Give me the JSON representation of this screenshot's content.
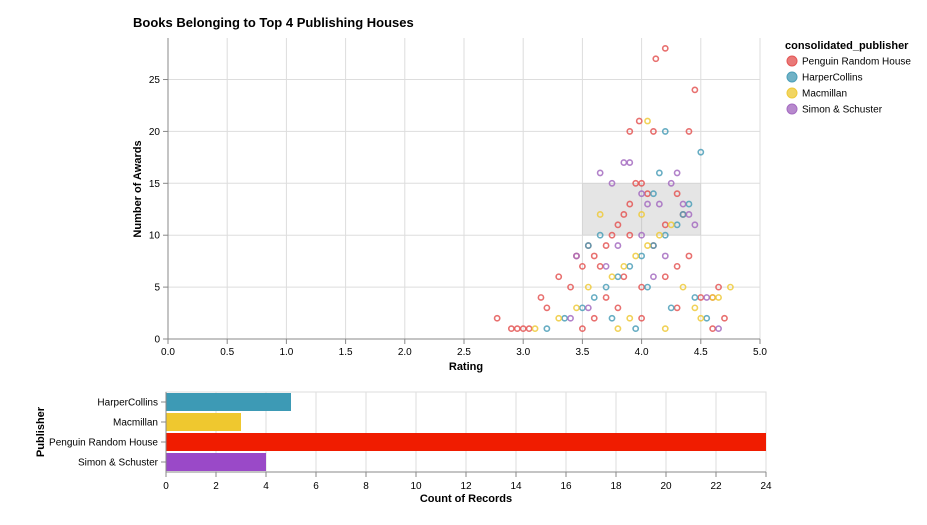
{
  "chart_data": [
    {
      "type": "scatter",
      "title": "Books Belonging to Top 4 Publishing Houses",
      "xlabel": "Rating",
      "ylabel": "Number of Awards",
      "xlim": [
        0,
        5
      ],
      "ylim": [
        0,
        29
      ],
      "x_ticks": [
        "0.0",
        "0.5",
        "1.0",
        "1.5",
        "2.0",
        "2.5",
        "3.0",
        "3.5",
        "4.0",
        "4.5",
        "5.0"
      ],
      "y_ticks": [
        "0",
        "5",
        "10",
        "15",
        "20",
        "25"
      ],
      "grid": true,
      "legend": {
        "title": "consolidated_publisher",
        "position": "right",
        "entries": [
          "Penguin Random House",
          "HarperCollins",
          "Macmillan",
          "Simon & Schuster"
        ]
      },
      "brush_selection": {
        "x": [
          3.5,
          4.5
        ],
        "y": [
          10,
          15
        ]
      },
      "series": [
        {
          "name": "Penguin Random House",
          "color": "#e45756",
          "points": [
            [
              2.78,
              2
            ],
            [
              2.9,
              1
            ],
            [
              2.95,
              1
            ],
            [
              3.0,
              1
            ],
            [
              3.05,
              1
            ],
            [
              3.15,
              4
            ],
            [
              3.2,
              3
            ],
            [
              3.3,
              6
            ],
            [
              3.4,
              5
            ],
            [
              3.45,
              8
            ],
            [
              3.5,
              7
            ],
            [
              3.55,
              9
            ],
            [
              3.6,
              8
            ],
            [
              3.65,
              7
            ],
            [
              3.7,
              9
            ],
            [
              3.75,
              10
            ],
            [
              3.8,
              11
            ],
            [
              3.85,
              12
            ],
            [
              3.9,
              13
            ],
            [
              3.95,
              15
            ],
            [
              4.0,
              15
            ],
            [
              3.98,
              21
            ],
            [
              4.05,
              14
            ],
            [
              4.1,
              20
            ],
            [
              3.9,
              20
            ],
            [
              4.12,
              27
            ],
            [
              4.2,
              28
            ],
            [
              4.3,
              14
            ],
            [
              4.35,
              12
            ],
            [
              4.4,
              20
            ],
            [
              4.45,
              24
            ],
            [
              4.5,
              4
            ],
            [
              4.6,
              4
            ],
            [
              4.65,
              5
            ],
            [
              4.7,
              2
            ],
            [
              3.6,
              2
            ],
            [
              3.8,
              3
            ],
            [
              4.0,
              5
            ],
            [
              4.2,
              6
            ],
            [
              4.3,
              7
            ],
            [
              4.4,
              8
            ],
            [
              4.1,
              9
            ],
            [
              3.9,
              10
            ],
            [
              4.2,
              11
            ],
            [
              3.7,
              4
            ],
            [
              3.5,
              1
            ],
            [
              4.6,
              1
            ],
            [
              4.0,
              2
            ],
            [
              4.3,
              3
            ],
            [
              3.85,
              6
            ]
          ]
        },
        {
          "name": "HarperCollins",
          "color": "#4c9fb8",
          "points": [
            [
              3.2,
              1
            ],
            [
              3.35,
              2
            ],
            [
              3.5,
              3
            ],
            [
              3.6,
              4
            ],
            [
              3.7,
              5
            ],
            [
              3.8,
              6
            ],
            [
              3.9,
              7
            ],
            [
              4.0,
              8
            ],
            [
              4.1,
              9
            ],
            [
              4.2,
              10
            ],
            [
              4.3,
              11
            ],
            [
              4.35,
              12
            ],
            [
              4.4,
              13
            ],
            [
              3.55,
              9
            ],
            [
              3.65,
              10
            ],
            [
              4.15,
              16
            ],
            [
              4.2,
              20
            ],
            [
              4.1,
              14
            ],
            [
              4.5,
              18
            ],
            [
              4.55,
              2
            ],
            [
              3.95,
              1
            ],
            [
              4.45,
              4
            ],
            [
              4.25,
              3
            ],
            [
              3.75,
              2
            ],
            [
              4.05,
              5
            ]
          ]
        },
        {
          "name": "Macmillan",
          "color": "#eeca3b",
          "points": [
            [
              3.1,
              1
            ],
            [
              3.3,
              2
            ],
            [
              3.45,
              3
            ],
            [
              3.55,
              5
            ],
            [
              3.65,
              12
            ],
            [
              3.75,
              6
            ],
            [
              3.85,
              7
            ],
            [
              3.95,
              8
            ],
            [
              4.05,
              9
            ],
            [
              4.15,
              10
            ],
            [
              4.25,
              11
            ],
            [
              4.35,
              5
            ],
            [
              4.45,
              3
            ],
            [
              4.6,
              4
            ],
            [
              4.65,
              4
            ],
            [
              4.75,
              5
            ],
            [
              4.05,
              21
            ],
            [
              4.0,
              12
            ],
            [
              3.9,
              2
            ],
            [
              4.2,
              1
            ],
            [
              4.5,
              2
            ],
            [
              3.8,
              1
            ]
          ]
        },
        {
          "name": "Simon & Schuster",
          "color": "#a56cc1",
          "points": [
            [
              3.4,
              2
            ],
            [
              3.45,
              8
            ],
            [
              3.55,
              3
            ],
            [
              3.65,
              16
            ],
            [
              3.75,
              15
            ],
            [
              3.85,
              17
            ],
            [
              3.9,
              17
            ],
            [
              4.0,
              14
            ],
            [
              4.05,
              13
            ],
            [
              4.15,
              13
            ],
            [
              4.25,
              15
            ],
            [
              4.3,
              16
            ],
            [
              4.35,
              13
            ],
            [
              4.4,
              12
            ],
            [
              4.45,
              11
            ],
            [
              4.55,
              4
            ],
            [
              4.65,
              1
            ],
            [
              4.1,
              6
            ],
            [
              3.7,
              7
            ],
            [
              4.2,
              8
            ],
            [
              3.8,
              9
            ],
            [
              4.0,
              10
            ]
          ]
        }
      ]
    },
    {
      "type": "bar",
      "orientation": "horizontal",
      "xlabel": "Count of Records",
      "ylabel": "Publisher",
      "xlim": [
        0,
        24
      ],
      "x_ticks": [
        "0",
        "2",
        "4",
        "6",
        "8",
        "10",
        "12",
        "14",
        "16",
        "18",
        "20",
        "22",
        "24"
      ],
      "grid": true,
      "categories": [
        "HarperCollins",
        "Macmillan",
        "Penguin Random House",
        "Simon & Schuster"
      ],
      "values": [
        5,
        3,
        24,
        4
      ],
      "colors": [
        "#3d9ab5",
        "#efc82f",
        "#f01c00",
        "#9a49c8"
      ]
    }
  ]
}
